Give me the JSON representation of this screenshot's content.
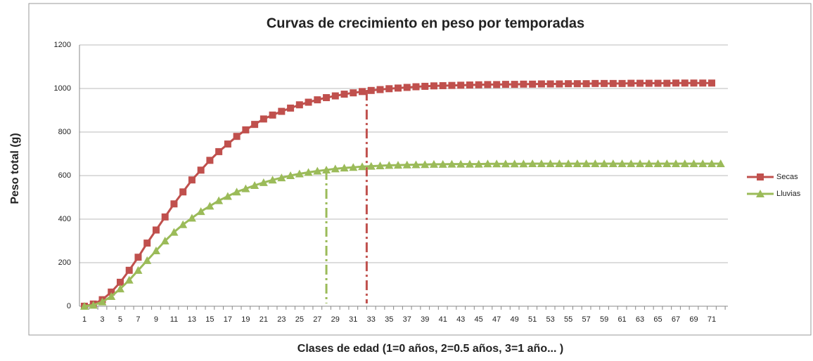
{
  "chart_data": {
    "type": "line",
    "title": "Curvas de crecimiento en peso por temporadas",
    "ylabel": "Peso total (g)",
    "xlabel": "Clases de edad (1=0 años, 2=0.5 años, 3=1 año... )",
    "categories": [
      1,
      null,
      3,
      null,
      5,
      null,
      7,
      null,
      9,
      null,
      11,
      null,
      13,
      null,
      15,
      null,
      17,
      null,
      19,
      null,
      21,
      null,
      23,
      null,
      25,
      null,
      27,
      null,
      29,
      null,
      31,
      null,
      33,
      null,
      35,
      null,
      37,
      null,
      39,
      null,
      41,
      null,
      43,
      null,
      45,
      null,
      47,
      null,
      49,
      null,
      51,
      null,
      53,
      null,
      55,
      null,
      57,
      null,
      59,
      null,
      61,
      null,
      63,
      null,
      65,
      null,
      67,
      null,
      69,
      null,
      71,
      null
    ],
    "series": [
      {
        "name": "Secas",
        "color": "#c0504d",
        "marker": "square",
        "values": [
          0,
          10,
          30,
          65,
          110,
          165,
          225,
          290,
          350,
          410,
          470,
          525,
          580,
          625,
          670,
          710,
          745,
          780,
          810,
          835,
          860,
          878,
          895,
          910,
          925,
          937,
          948,
          958,
          966,
          974,
          980,
          986,
          991,
          995,
          999,
          1002,
          1005,
          1008,
          1010,
          1012,
          1013,
          1014,
          1015,
          1016,
          1017,
          1018,
          1018,
          1019,
          1019,
          1020,
          1020,
          1021,
          1021,
          1021,
          1022,
          1022,
          1022,
          1023,
          1023,
          1023,
          1023,
          1024,
          1024,
          1024,
          1024,
          1024,
          1025,
          1025,
          1025,
          1025,
          1025,
          null
        ]
      },
      {
        "name": "Lluvias",
        "color": "#9bbb59",
        "marker": "triangle",
        "values": [
          0,
          5,
          20,
          45,
          80,
          120,
          165,
          210,
          255,
          300,
          340,
          375,
          405,
          435,
          460,
          485,
          505,
          525,
          540,
          555,
          568,
          580,
          590,
          600,
          608,
          615,
          621,
          626,
          631,
          635,
          638,
          641,
          643,
          645,
          647,
          648,
          649,
          650,
          651,
          652,
          652,
          653,
          653,
          653,
          653,
          654,
          654,
          654,
          654,
          654,
          655,
          655,
          655,
          655,
          655,
          655,
          655,
          655,
          655,
          655,
          655,
          655,
          655,
          655,
          655,
          655,
          655,
          655,
          655,
          655,
          655,
          655
        ]
      }
    ],
    "reference_lines": [
      {
        "x": 28,
        "y": 626,
        "color": "#9bbb59"
      },
      {
        "x": 32.5,
        "y": 990,
        "color": "#c0504d"
      }
    ],
    "ylim": [
      0,
      1200
    ],
    "yticks": [
      0,
      200,
      400,
      600,
      800,
      1000,
      1200
    ],
    "grid": true,
    "legend": "right"
  }
}
